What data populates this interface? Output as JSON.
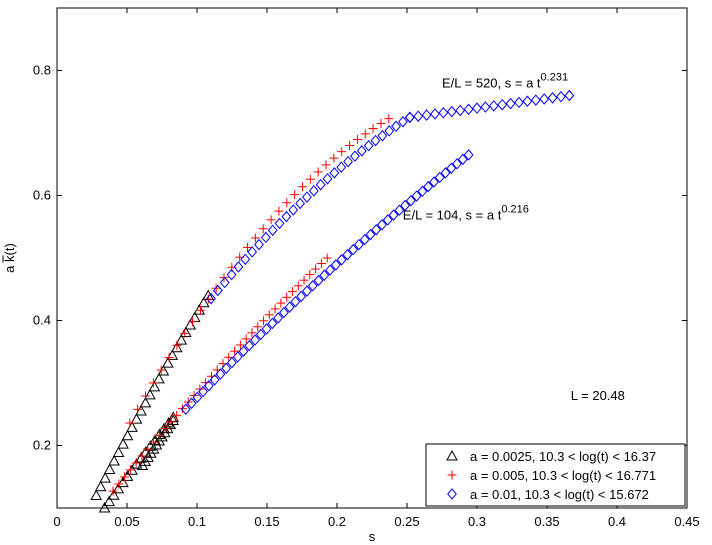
{
  "chart_data": {
    "type": "scatter",
    "xlabel": "s",
    "ylabel": "a k(t)",
    "xlim": [
      0,
      0.45
    ],
    "ylim": [
      0.1,
      0.9
    ],
    "x_ticks": [
      0,
      0.05,
      0.1,
      0.15,
      0.2,
      0.25,
      0.3,
      0.35,
      0.4,
      0.45
    ],
    "x_tick_labels": [
      "0",
      "0.05",
      "0.1",
      "0.15",
      "0.2",
      "0.25",
      "0.3",
      "0.35",
      "0.4",
      "0.45"
    ],
    "y_ticks": [
      0.2,
      0.4,
      0.6,
      0.8
    ],
    "y_tick_labels": [
      "0.2",
      "0.4",
      "0.6",
      "0.8"
    ],
    "grid": false,
    "legend_position": "bottom-right",
    "annotations": [
      {
        "id": "anno-520",
        "base": "E/L = 520,  s = a t",
        "sup": "0.231",
        "x": 0.275,
        "y": 0.773
      },
      {
        "id": "anno-104",
        "base": "E/L = 104,  s = a t",
        "sup": "0.216",
        "x": 0.247,
        "y": 0.562
      },
      {
        "id": "anno-L",
        "base": "L = 20.48",
        "sup": "",
        "x": 0.367,
        "y": 0.273
      }
    ],
    "series": [
      {
        "name": "a = 0.0025,  10.3 < log(t) < 16.37",
        "marker": "triangle",
        "color": "#000000",
        "curves": [
          {
            "x_start": 0.028,
            "x_end": 0.108,
            "n": 26,
            "y_start": 0.12,
            "y_end": 0.44,
            "curvature": 0.03
          },
          {
            "x_start": 0.034,
            "x_end": 0.083,
            "n": 16,
            "y_start": 0.1,
            "y_end": 0.245,
            "curvature": 0.01
          },
          {
            "x_start": 0.061,
            "x_end": 0.083,
            "n": 12,
            "y_start": 0.168,
            "y_end": 0.24,
            "curvature": 0.0
          }
        ]
      },
      {
        "name": "a = 0.005,  10.3 < log(t) < 16.771",
        "marker": "plus",
        "color": "#ff0000",
        "curves": [
          {
            "x_start": 0.052,
            "x_end": 0.237,
            "n": 34,
            "y_start": 0.236,
            "y_end": 0.723,
            "curvature": 0.24
          },
          {
            "x_start": 0.04,
            "x_end": 0.193,
            "n": 38,
            "y_start": 0.127,
            "y_end": 0.5,
            "curvature": 0.05
          }
        ]
      },
      {
        "name": "a = 0.01,  10.3 < log(t) < 15.672",
        "marker": "diamond",
        "color": "#0000ff",
        "curves": [
          {
            "x_start": 0.11,
            "x_end": 0.252,
            "n": 30,
            "y_start": 0.435,
            "y_end": 0.725,
            "curvature": 0.09
          },
          {
            "x_start": 0.252,
            "x_end": 0.366,
            "n": 20,
            "y_start": 0.725,
            "y_end": 0.76,
            "curvature": 0.0
          },
          {
            "x_start": 0.092,
            "x_end": 0.294,
            "n": 50,
            "y_start": 0.258,
            "y_end": 0.665,
            "curvature": 0.06
          }
        ]
      }
    ]
  }
}
